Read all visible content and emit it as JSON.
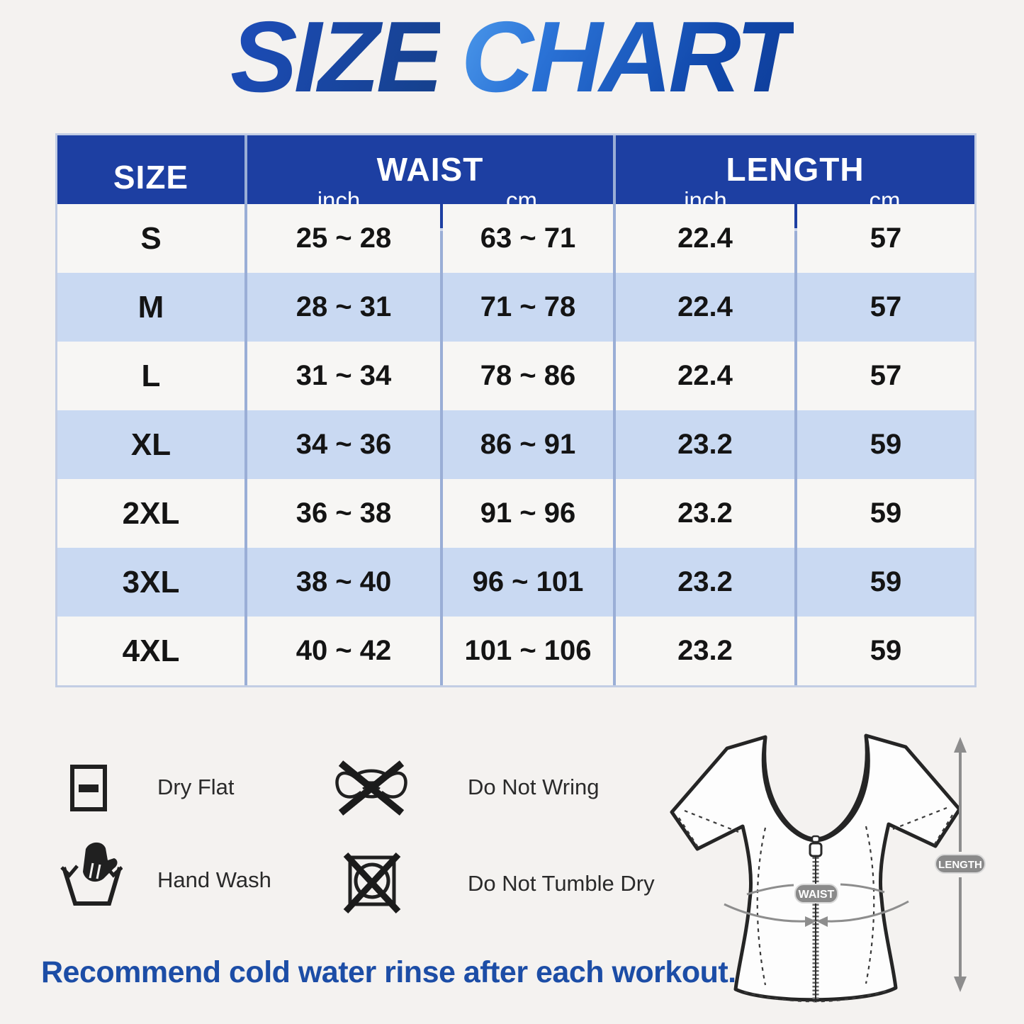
{
  "title": {
    "word1": "SIZE",
    "word2": "CHART"
  },
  "table": {
    "header": {
      "size": "SIZE",
      "waist": "WAIST",
      "length": "LENGTH",
      "waist_inch": "inch",
      "waist_cm": "cm",
      "length_inch": "inch",
      "length_cm": "cm"
    },
    "rows": [
      {
        "size": "S",
        "waist_inch": "25 ~ 28",
        "waist_cm": "63 ~ 71",
        "length_inch": "22.4",
        "length_cm": "57"
      },
      {
        "size": "M",
        "waist_inch": "28 ~ 31",
        "waist_cm": "71 ~ 78",
        "length_inch": "22.4",
        "length_cm": "57"
      },
      {
        "size": "L",
        "waist_inch": "31 ~ 34",
        "waist_cm": "78 ~ 86",
        "length_inch": "22.4",
        "length_cm": "57"
      },
      {
        "size": "XL",
        "waist_inch": "34 ~ 36",
        "waist_cm": "86 ~ 91",
        "length_inch": "23.2",
        "length_cm": "59"
      },
      {
        "size": "2XL",
        "waist_inch": "36 ~ 38",
        "waist_cm": "91 ~ 96",
        "length_inch": "23.2",
        "length_cm": "59"
      },
      {
        "size": "3XL",
        "waist_inch": "38 ~ 40",
        "waist_cm": "96 ~ 101",
        "length_inch": "23.2",
        "length_cm": "59"
      },
      {
        "size": "4XL",
        "waist_inch": "40 ~ 42",
        "waist_cm": "101 ~ 106",
        "length_inch": "23.2",
        "length_cm": "59"
      }
    ]
  },
  "care": {
    "dry_flat": "Dry Flat",
    "do_not_wring": "Do Not Wring",
    "hand_wash": "Hand Wash",
    "do_not_tumble_dry": "Do Not Tumble Dry"
  },
  "garment": {
    "waist_badge": "WAIST",
    "length_badge": "LENGTH"
  },
  "footer": {
    "note": "Recommend cold water rinse after each workout."
  },
  "colors": {
    "header_blue": "#1d3fa2",
    "row_alt_blue": "#c9d9f2",
    "row_white": "#f7f6f4",
    "divider_blue": "#9aaed6",
    "title_blue_dark": "#16418f",
    "title_blue_light": "#4e9bec",
    "footer_blue": "#1c4da6",
    "badge_gray": "#8a8a8a"
  }
}
